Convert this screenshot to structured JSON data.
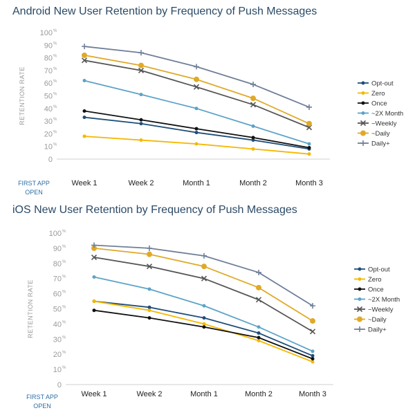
{
  "chart_data": [
    {
      "type": "line",
      "title": "Android New User Retention by Frequency of Push Messages",
      "ylabel": "RETENTION RATE",
      "xlabel": "",
      "first_point_label": [
        "FIRST APP",
        "OPEN"
      ],
      "categories": [
        "Week 1",
        "Week 2",
        "Month 1",
        "Month 2",
        "Month 3"
      ],
      "yticks": [
        "0",
        "10",
        "20",
        "30",
        "40",
        "50",
        "60",
        "70",
        "80",
        "90",
        "100"
      ],
      "percent_suffix": "%",
      "ylim": [
        0,
        100
      ],
      "grid": false,
      "legend_position": "right",
      "series": [
        {
          "name": "Opt-out",
          "color": "#1f4e79",
          "marker": "dot",
          "values": [
            33,
            28,
            21,
            15,
            8
          ]
        },
        {
          "name": "Zero",
          "color": "#f5b800",
          "marker": "dot",
          "values": [
            18,
            15,
            12,
            8,
            4
          ]
        },
        {
          "name": "Once",
          "color": "#111111",
          "marker": "dot",
          "values": [
            38,
            31,
            24,
            17,
            9
          ]
        },
        {
          "name": "~2X Month",
          "color": "#5ba3c7",
          "marker": "dot",
          "values": [
            62,
            51,
            40,
            26,
            12
          ]
        },
        {
          "name": "~Weekly",
          "color": "#555555",
          "marker": "x",
          "values": [
            78,
            70,
            57,
            43,
            25
          ]
        },
        {
          "name": "~Daily",
          "color": "#e0a928",
          "marker": "circle",
          "values": [
            82,
            74,
            63,
            48,
            28
          ]
        },
        {
          "name": "Daily+",
          "color": "#6f7f99",
          "marker": "plus",
          "values": [
            89,
            84,
            73,
            59,
            41
          ]
        }
      ]
    },
    {
      "type": "line",
      "title": "iOS New User Retention by Frequency of Push Messages",
      "ylabel": "RETENTION RATE",
      "xlabel": "",
      "first_point_label": [
        "FIRST APP",
        "OPEN"
      ],
      "categories": [
        "Week 1",
        "Week 2",
        "Month 1",
        "Month 2",
        "Month 3"
      ],
      "yticks": [
        "0",
        "10",
        "20",
        "30",
        "40",
        "50",
        "60",
        "70",
        "80",
        "90",
        "100"
      ],
      "percent_suffix": "%",
      "ylim": [
        0,
        100
      ],
      "grid": false,
      "legend_position": "right",
      "series": [
        {
          "name": "Opt-out",
          "color": "#1f4e79",
          "marker": "dot",
          "values": [
            55,
            51,
            44,
            34,
            19
          ]
        },
        {
          "name": "Zero",
          "color": "#f5b800",
          "marker": "dot",
          "values": [
            55,
            49,
            40,
            29,
            15
          ]
        },
        {
          "name": "Once",
          "color": "#111111",
          "marker": "dot",
          "values": [
            49,
            44,
            38,
            31,
            17
          ]
        },
        {
          "name": "~2X Month",
          "color": "#5ba3c7",
          "marker": "dot",
          "values": [
            71,
            63,
            52,
            38,
            22
          ]
        },
        {
          "name": "~Weekly",
          "color": "#555555",
          "marker": "x",
          "values": [
            84,
            78,
            70,
            56,
            35
          ]
        },
        {
          "name": "~Daily",
          "color": "#e0a928",
          "marker": "circle",
          "values": [
            90,
            86,
            78,
            64,
            42
          ]
        },
        {
          "name": "Daily+",
          "color": "#6f7f99",
          "marker": "plus",
          "values": [
            92,
            90,
            85,
            74,
            52
          ]
        }
      ]
    }
  ]
}
